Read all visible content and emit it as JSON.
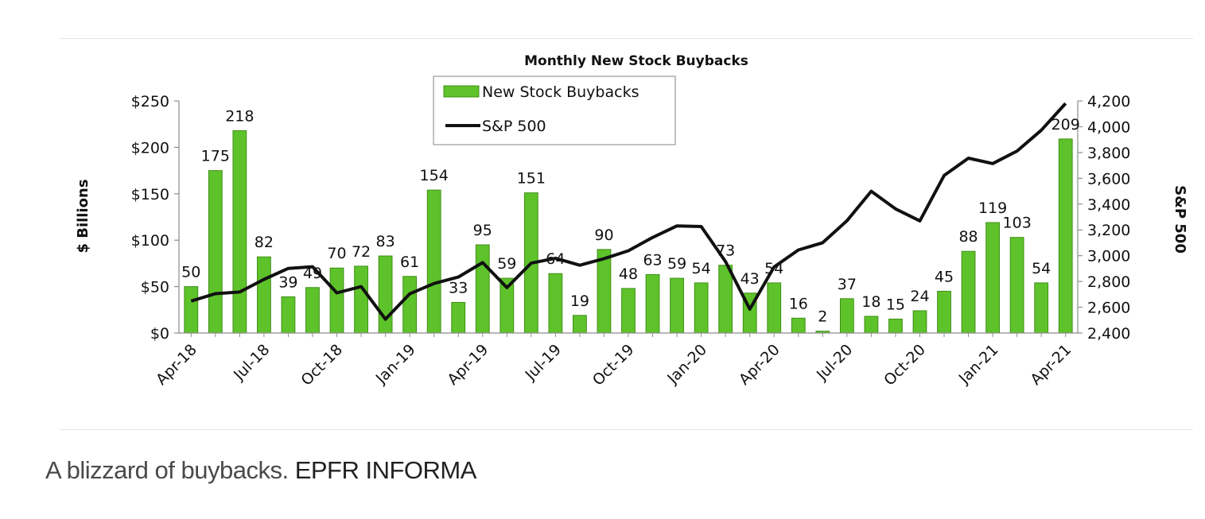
{
  "caption": {
    "text": "A blizzard of buybacks.",
    "credit": "EPFR INFORMA"
  },
  "chart_data": {
    "type": "bar",
    "title": "Monthly New Stock Buybacks",
    "ylabel": "$ Billions",
    "y2label": "S&P 500",
    "ylim": [
      0,
      250
    ],
    "y2lim": [
      2400,
      4200
    ],
    "yticks": [
      "$0",
      "$50",
      "$100",
      "$150",
      "$200",
      "$250"
    ],
    "y2ticks": [
      "2,400",
      "2,600",
      "2,800",
      "3,000",
      "3,200",
      "3,400",
      "3,600",
      "3,800",
      "4,000",
      "4,200"
    ],
    "xtick_labels": [
      "Apr-18",
      "Jul-18",
      "Oct-18",
      "Jan-19",
      "Apr-19",
      "Jul-19",
      "Oct-19",
      "Jan-20",
      "Apr-20",
      "Jul-20",
      "Oct-20",
      "Jan-21",
      "Apr-21"
    ],
    "categories": [
      "Apr-18",
      "May-18",
      "Jun-18",
      "Jul-18",
      "Aug-18",
      "Sep-18",
      "Oct-18",
      "Nov-18",
      "Dec-18",
      "Jan-19",
      "Feb-19",
      "Mar-19",
      "Apr-19",
      "May-19",
      "Jun-19",
      "Jul-19",
      "Aug-19",
      "Sep-19",
      "Oct-19",
      "Nov-19",
      "Dec-19",
      "Jan-20",
      "Feb-20",
      "Mar-20",
      "Apr-20",
      "May-20",
      "Jun-20",
      "Jul-20",
      "Aug-20",
      "Sep-20",
      "Oct-20",
      "Nov-20",
      "Dec-20",
      "Jan-21",
      "Feb-21",
      "Mar-21",
      "Apr-21"
    ],
    "legend_position": "top-center",
    "grid": false,
    "series": [
      {
        "name": "New Stock Buybacks",
        "type": "bar",
        "axis": "left",
        "color": "#5ec32a",
        "values": [
          50,
          175,
          218,
          82,
          39,
          49,
          70,
          72,
          83,
          61,
          154,
          33,
          95,
          59,
          151,
          64,
          19,
          90,
          48,
          63,
          59,
          54,
          73,
          43,
          54,
          16,
          2,
          37,
          18,
          15,
          24,
          45,
          88,
          119,
          103,
          54,
          209
        ],
        "labels": [
          "50",
          "175",
          "218",
          "82",
          "39",
          "49",
          "70",
          "72",
          "83",
          "61",
          "154",
          "33",
          "95",
          "59",
          "151",
          "64",
          "19",
          "90",
          "48",
          "63",
          "59",
          "54",
          "73",
          "43",
          "54",
          "16",
          "2",
          "37",
          "18",
          "15",
          "24",
          "45",
          "88",
          "119",
          "103",
          "54",
          "209"
        ]
      },
      {
        "name": "S&P 500",
        "type": "line",
        "axis": "right",
        "color": "#111111",
        "values": [
          2648,
          2705,
          2718,
          2816,
          2901,
          2914,
          2711,
          2760,
          2507,
          2704,
          2784,
          2834,
          2946,
          2752,
          2942,
          2980,
          2926,
          2977,
          3038,
          3141,
          3231,
          3226,
          2954,
          2585,
          2912,
          3044,
          3100,
          3271,
          3500,
          3363,
          3270,
          3622,
          3756,
          3714,
          3811,
          3973,
          4181
        ]
      }
    ]
  }
}
